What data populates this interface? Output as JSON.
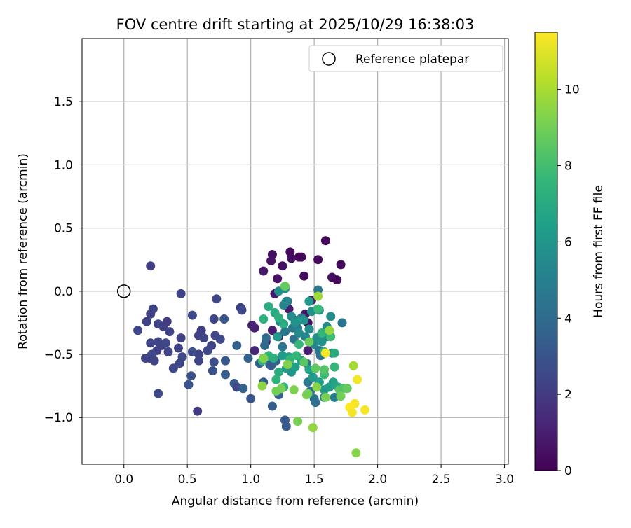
{
  "chart_data": {
    "type": "scatter",
    "title": "FOV centre drift starting at 2025/10/29 16:38:03",
    "xlabel": "Angular distance from reference (arcmin)",
    "ylabel": "Rotation from reference (arcmin)",
    "xlim": [
      -0.33,
      3.03
    ],
    "ylim": [
      -1.37,
      2.0
    ],
    "xticks": [
      0.0,
      0.5,
      1.0,
      1.5,
      2.0,
      2.5,
      3.0
    ],
    "xtick_labels": [
      "0.0",
      "0.5",
      "1.0",
      "1.5",
      "2.0",
      "2.5",
      "3.0"
    ],
    "yticks": [
      -1.0,
      -0.5,
      0.0,
      0.5,
      1.0,
      1.5
    ],
    "ytick_labels": [
      "−1.0",
      "−0.5",
      "0.0",
      "0.5",
      "1.0",
      "1.5"
    ],
    "grid": true,
    "legend": {
      "position": "top-right",
      "entries": [
        {
          "label": "Reference platepar",
          "marker": "open-circle"
        }
      ]
    },
    "reference_point": {
      "x": 0.0,
      "y": 0.0
    },
    "colorbar": {
      "label": "Hours from first FF file",
      "min": 0,
      "max": 11.5,
      "ticks": [
        0,
        2,
        4,
        6,
        8,
        10
      ],
      "tick_labels": [
        "0",
        "2",
        "4",
        "6",
        "8",
        "10"
      ],
      "colormap": [
        "#440154",
        "#482878",
        "#3e4989",
        "#31688e",
        "#26828e",
        "#1f9e89",
        "#35b779",
        "#6ece58",
        "#b5de2b",
        "#fde725"
      ]
    },
    "series": [
      {
        "name": "FOV centre drift",
        "points": [
          [
            1.31,
            0.31,
            0.3
          ],
          [
            1.32,
            0.26,
            0.4
          ],
          [
            1.38,
            0.27,
            0.3
          ],
          [
            1.17,
            0.29,
            0.5
          ],
          [
            1.16,
            0.24,
            0.6
          ],
          [
            1.1,
            0.16,
            0.8
          ],
          [
            1.25,
            0.2,
            0.5
          ],
          [
            1.59,
            0.4,
            0.2
          ],
          [
            1.53,
            0.25,
            0.3
          ],
          [
            1.71,
            0.21,
            0.4
          ],
          [
            1.64,
            0.11,
            0.5
          ],
          [
            1.68,
            0.09,
            0.3
          ],
          [
            1.42,
            0.12,
            0.4
          ],
          [
            1.4,
            0.27,
            0.2
          ],
          [
            1.21,
            0.1,
            0.6
          ],
          [
            1.19,
            -0.02,
            0.7
          ],
          [
            1.43,
            -0.18,
            0.7
          ],
          [
            1.48,
            -0.07,
            0.8
          ],
          [
            1.3,
            -0.14,
            0.9
          ],
          [
            1.17,
            -0.31,
            0.9
          ],
          [
            1.12,
            -0.4,
            1.0
          ],
          [
            1.03,
            -0.29,
            1.0
          ],
          [
            1.22,
            -0.36,
            0.9
          ],
          [
            1.01,
            -0.27,
            1.1
          ],
          [
            1.03,
            -0.47,
            1.2
          ],
          [
            1.45,
            -0.25,
            0.6
          ],
          [
            1.45,
            -0.47,
            1.0
          ],
          [
            0.21,
            0.2,
            2.2
          ],
          [
            0.21,
            -0.18,
            2.2
          ],
          [
            0.18,
            -0.24,
            2.3
          ],
          [
            0.23,
            -0.14,
            2.3
          ],
          [
            0.11,
            -0.31,
            2.5
          ],
          [
            0.27,
            -0.26,
            2.4
          ],
          [
            0.31,
            -0.28,
            2.2
          ],
          [
            0.34,
            -0.24,
            2.1
          ],
          [
            0.36,
            -0.32,
            2.3
          ],
          [
            0.21,
            -0.41,
            2.4
          ],
          [
            0.27,
            -0.4,
            2.4
          ],
          [
            0.3,
            -0.43,
            2.3
          ],
          [
            0.33,
            -0.41,
            2.5
          ],
          [
            0.35,
            -0.48,
            2.4
          ],
          [
            0.26,
            -0.47,
            2.2
          ],
          [
            0.22,
            -0.5,
            2.6
          ],
          [
            0.2,
            -0.53,
            2.4
          ],
          [
            0.17,
            -0.53,
            2.3
          ],
          [
            0.24,
            -0.55,
            2.4
          ],
          [
            0.39,
            -0.61,
            2.5
          ],
          [
            0.43,
            -0.45,
            2.3
          ],
          [
            0.45,
            -0.37,
            2.2
          ],
          [
            0.46,
            -0.52,
            2.6
          ],
          [
            0.44,
            -0.57,
            2.5
          ],
          [
            0.45,
            -0.02,
            2.3
          ],
          [
            0.27,
            -0.81,
            2.6
          ],
          [
            0.53,
            -0.67,
            2.9
          ],
          [
            0.51,
            -0.74,
            3.0
          ],
          [
            0.54,
            -0.48,
            2.7
          ],
          [
            0.54,
            -0.19,
            2.6
          ],
          [
            0.59,
            -0.35,
            2.2
          ],
          [
            0.59,
            -0.5,
            2.3
          ],
          [
            0.59,
            -0.55,
            2.4
          ],
          [
            0.61,
            -0.31,
            2.2
          ],
          [
            0.63,
            -0.37,
            2.4
          ],
          [
            0.58,
            -0.95,
            2.0
          ],
          [
            0.66,
            -0.47,
            2.5
          ],
          [
            0.69,
            -0.43,
            2.4
          ],
          [
            0.71,
            -0.22,
            2.5
          ],
          [
            0.73,
            -0.06,
            2.5
          ],
          [
            0.72,
            -0.35,
            2.4
          ],
          [
            0.71,
            -0.56,
            2.8
          ],
          [
            0.7,
            -0.63,
            3.0
          ],
          [
            0.76,
            -0.38,
            2.6
          ],
          [
            0.79,
            -0.22,
            3.1
          ],
          [
            0.8,
            -0.55,
            3.2
          ],
          [
            0.8,
            -0.66,
            3.4
          ],
          [
            0.87,
            -0.73,
            3.3
          ],
          [
            0.89,
            -0.43,
            3.6
          ],
          [
            0.89,
            -0.76,
            2.4
          ],
          [
            0.92,
            -0.13,
            2.3
          ],
          [
            0.93,
            -0.15,
            2.5
          ],
          [
            0.94,
            -0.77,
            3.6
          ],
          [
            0.98,
            -0.53,
            3.5
          ],
          [
            1.0,
            -0.85,
            3.0
          ],
          [
            1.07,
            -0.57,
            3.4
          ],
          [
            1.11,
            -0.43,
            3.9
          ],
          [
            1.12,
            -0.37,
            4.1
          ],
          [
            1.1,
            -0.72,
            3.5
          ],
          [
            1.15,
            -0.58,
            4.0
          ],
          [
            1.16,
            -0.59,
            3.3
          ],
          [
            1.17,
            -0.91,
            3.4
          ],
          [
            1.2,
            -0.55,
            3.6
          ],
          [
            1.22,
            -0.82,
            3.5
          ],
          [
            1.27,
            -1.02,
            3.3
          ],
          [
            1.28,
            -1.07,
            3.2
          ],
          [
            1.25,
            -0.44,
            4.5
          ],
          [
            1.27,
            -0.32,
            4.6
          ],
          [
            1.29,
            -0.08,
            4.4
          ],
          [
            1.33,
            -0.29,
            4.7
          ],
          [
            1.34,
            -0.38,
            4.3
          ],
          [
            1.37,
            -0.29,
            4.8
          ],
          [
            1.4,
            -0.21,
            4.6
          ],
          [
            1.44,
            -0.57,
            4.4
          ],
          [
            1.45,
            -0.72,
            4.6
          ],
          [
            1.47,
            -0.79,
            4.2
          ],
          [
            1.5,
            -0.85,
            4.4
          ],
          [
            1.51,
            -0.88,
            4.3
          ],
          [
            1.54,
            -0.47,
            4.5
          ],
          [
            1.55,
            -0.51,
            4.4
          ],
          [
            1.53,
            0.01,
            4.6
          ],
          [
            1.72,
            -0.25,
            4.5
          ],
          [
            1.66,
            -0.84,
            4.8
          ],
          [
            1.58,
            -0.84,
            4.9
          ],
          [
            1.64,
            -0.49,
            5.0
          ],
          [
            1.23,
            -0.24,
            5.4
          ],
          [
            1.26,
            -0.11,
            5.2
          ],
          [
            1.27,
            0.02,
            5.5
          ],
          [
            1.22,
            0.0,
            5.7
          ],
          [
            1.28,
            -0.08,
            5.3
          ],
          [
            1.32,
            -0.2,
            5.6
          ],
          [
            1.35,
            -0.25,
            5.8
          ],
          [
            1.37,
            -0.23,
            5.9
          ],
          [
            1.38,
            -0.33,
            5.5
          ],
          [
            1.43,
            -0.36,
            5.2
          ],
          [
            1.46,
            -0.3,
            5.6
          ],
          [
            1.5,
            -0.42,
            5.4
          ],
          [
            1.52,
            -0.37,
            5.6
          ],
          [
            1.56,
            -0.4,
            5.9
          ],
          [
            1.6,
            -0.36,
            5.8
          ],
          [
            1.63,
            -0.2,
            5.7
          ],
          [
            1.6,
            -0.28,
            5.5
          ],
          [
            1.54,
            -0.15,
            5.6
          ],
          [
            1.48,
            -0.16,
            5.9
          ],
          [
            1.46,
            -0.08,
            6.1
          ],
          [
            1.42,
            -0.23,
            6.0
          ],
          [
            1.21,
            -0.36,
            6.2
          ],
          [
            1.25,
            -0.51,
            6.3
          ],
          [
            1.3,
            -0.52,
            6.4
          ],
          [
            1.28,
            -0.61,
            6.1
          ],
          [
            1.32,
            -0.64,
            6.0
          ],
          [
            1.35,
            -0.6,
            6.5
          ],
          [
            1.4,
            -0.55,
            6.3
          ],
          [
            1.46,
            -0.62,
            6.6
          ],
          [
            1.49,
            -0.68,
            6.2
          ],
          [
            1.54,
            -0.72,
            6.4
          ],
          [
            1.58,
            -0.78,
            6.1
          ],
          [
            1.62,
            -0.76,
            6.3
          ],
          [
            1.65,
            -0.72,
            6.6
          ],
          [
            1.69,
            -0.76,
            6.8
          ],
          [
            1.66,
            -0.49,
            7.0
          ],
          [
            1.14,
            -0.12,
            7.1
          ],
          [
            1.19,
            -0.17,
            7.0
          ],
          [
            1.22,
            -0.21,
            7.2
          ],
          [
            1.26,
            -0.26,
            7.1
          ],
          [
            1.1,
            -0.22,
            7.3
          ],
          [
            1.09,
            -0.55,
            7.5
          ],
          [
            1.14,
            -0.51,
            7.4
          ],
          [
            1.18,
            -0.53,
            7.2
          ],
          [
            1.22,
            -0.64,
            7.1
          ],
          [
            1.2,
            -0.7,
            7.4
          ],
          [
            1.26,
            -0.76,
            7.3
          ],
          [
            1.31,
            -0.54,
            7.5
          ],
          [
            1.36,
            -0.51,
            7.6
          ],
          [
            1.38,
            -0.42,
            7.6
          ],
          [
            1.53,
            -0.14,
            7.8
          ],
          [
            1.56,
            -0.33,
            7.5
          ],
          [
            1.58,
            -0.48,
            7.7
          ],
          [
            1.66,
            -0.6,
            7.6
          ],
          [
            1.58,
            -0.66,
            7.9
          ],
          [
            1.63,
            -0.36,
            7.9
          ],
          [
            1.27,
            0.04,
            8.7
          ],
          [
            1.42,
            -0.56,
            8.5
          ],
          [
            1.51,
            -0.61,
            8.6
          ],
          [
            1.46,
            -0.4,
            8.8
          ],
          [
            1.58,
            -0.62,
            8.4
          ],
          [
            1.7,
            -0.78,
            8.5
          ],
          [
            1.73,
            -0.77,
            8.3
          ],
          [
            1.24,
            -0.77,
            9.1
          ],
          [
            1.2,
            -0.79,
            9.0
          ],
          [
            1.29,
            -0.58,
            9.3
          ],
          [
            1.34,
            -0.78,
            9.2
          ],
          [
            1.52,
            -0.76,
            9.4
          ],
          [
            1.44,
            -0.82,
            9.3
          ],
          [
            1.45,
            -0.81,
            9.0
          ],
          [
            1.37,
            -1.03,
            9.1
          ],
          [
            1.49,
            -1.08,
            9.6
          ],
          [
            1.71,
            -0.83,
            9.0
          ],
          [
            1.76,
            -0.77,
            8.7
          ],
          [
            1.59,
            -0.84,
            9.1
          ],
          [
            1.09,
            -0.75,
            9.5
          ],
          [
            1.1,
            -0.53,
            9.3
          ],
          [
            1.62,
            -0.31,
            9.6
          ],
          [
            1.53,
            -0.04,
            9.8
          ],
          [
            1.81,
            -0.59,
            9.9
          ],
          [
            1.83,
            -1.28,
            9.4
          ],
          [
            1.59,
            -0.49,
            11.4
          ],
          [
            1.84,
            -0.7,
            11.3
          ],
          [
            1.82,
            -0.89,
            11.4
          ],
          [
            1.78,
            -0.92,
            11.5
          ],
          [
            1.8,
            -0.96,
            11.3
          ],
          [
            1.9,
            -0.94,
            11.4
          ]
        ]
      }
    ]
  }
}
